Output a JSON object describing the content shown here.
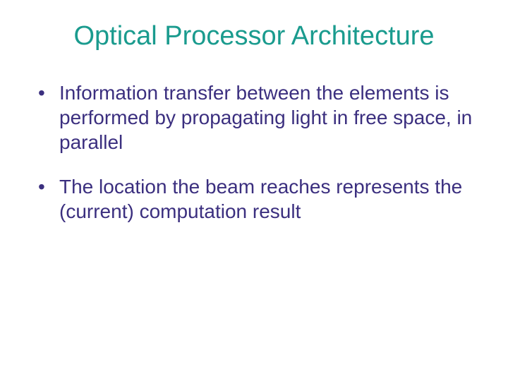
{
  "slide": {
    "title": "Optical Processor Architecture",
    "title_color": "#1a9b8e",
    "bullet_color": "#3b2f7f",
    "bullets": [
      "Information transfer between the elements is performed by propagating light in free space, in parallel",
      "The location the beam reaches represents the (current) computation result"
    ],
    "background_color": "#ffffff",
    "title_fontsize": 38,
    "body_fontsize": 28
  }
}
